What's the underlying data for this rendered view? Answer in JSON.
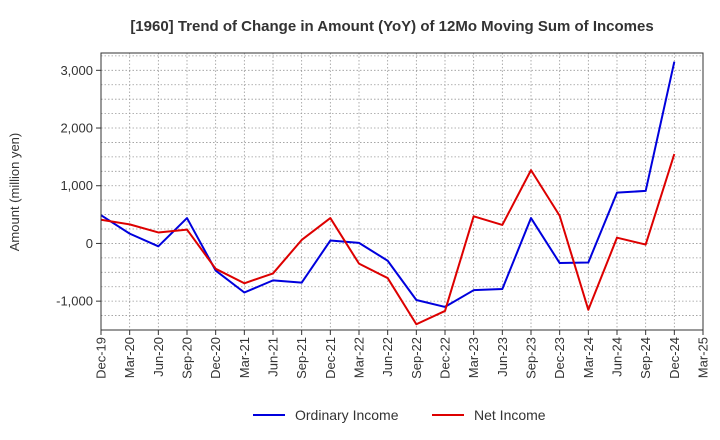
{
  "chart_data": {
    "type": "line",
    "title": "[1960]  Trend of Change in Amount (YoY) of 12Mo Moving Sum of Incomes",
    "xlabel": "",
    "ylabel": "Amount (million yen)",
    "ylim": [
      -1500,
      3300
    ],
    "yticks": [
      3000,
      2000,
      1000,
      0,
      -1000
    ],
    "ytick_labels": [
      "3,000",
      "2,000",
      "1,000",
      "0",
      "-1,000"
    ],
    "grid": true,
    "legend": "bottom-center",
    "categories": [
      "Dec-19",
      "Mar-20",
      "Jun-20",
      "Sep-20",
      "Dec-20",
      "Mar-21",
      "Jun-21",
      "Sep-21",
      "Dec-21",
      "Mar-22",
      "Jun-22",
      "Sep-22",
      "Dec-22",
      "Mar-23",
      "Jun-23",
      "Sep-23",
      "Dec-23",
      "Mar-24",
      "Jun-24",
      "Sep-24",
      "Dec-24",
      "Mar-25"
    ],
    "series": [
      {
        "name": "Ordinary Income",
        "color": "#0000dd",
        "values": [
          490,
          170,
          -50,
          440,
          -470,
          -850,
          -640,
          -680,
          50,
          10,
          -300,
          -980,
          -1100,
          -810,
          -790,
          440,
          -340,
          -330,
          880,
          910,
          3150,
          null
        ]
      },
      {
        "name": "Net Income",
        "color": "#dd0000",
        "values": [
          410,
          330,
          190,
          240,
          -440,
          -690,
          -520,
          60,
          440,
          -350,
          -600,
          -1400,
          -1170,
          470,
          320,
          1270,
          480,
          -1150,
          100,
          -20,
          1550,
          null
        ]
      }
    ]
  }
}
